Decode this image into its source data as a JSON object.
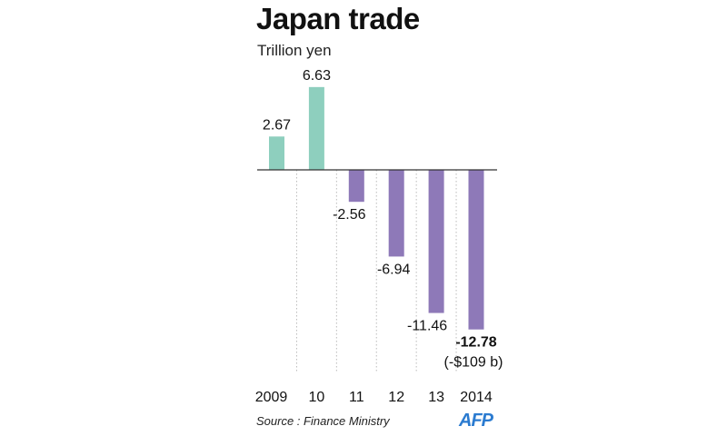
{
  "chart_data": {
    "type": "bar",
    "title": "Japan trade",
    "ylabel": "Trillion yen",
    "categories": [
      "2009",
      "10",
      "11",
      "12",
      "13",
      "2014"
    ],
    "values": [
      2.67,
      6.63,
      -2.56,
      -6.94,
      -11.46,
      -12.78
    ],
    "data_labels": [
      "2.67",
      "6.63",
      "-2.56",
      "-6.94",
      "-11.46",
      "-12.78"
    ],
    "annotation": "(-$109 b)",
    "colors": {
      "positive": "#8ecfbe",
      "negative": "#8e79b8"
    },
    "ylim": [
      -13,
      7
    ],
    "grid": false
  },
  "source": "Source : Finance Ministry",
  "logo": "AFP"
}
